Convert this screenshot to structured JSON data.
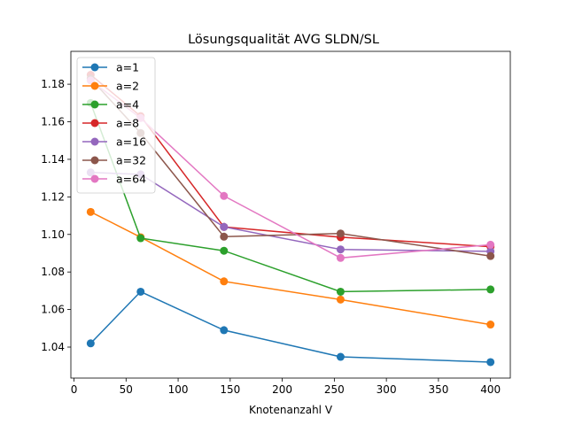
{
  "chart_data": {
    "type": "line",
    "title": "Lösungsqualität AVG SLDN/SL",
    "xlabel": "Knotenanzahl V",
    "ylabel": "",
    "x": [
      16,
      64,
      144,
      256,
      400
    ],
    "xlim": [
      -3,
      419
    ],
    "ylim": [
      1.0235,
      1.1975
    ],
    "xticks": [
      0,
      50,
      100,
      150,
      200,
      250,
      300,
      350,
      400
    ],
    "yticks": [
      1.04,
      1.06,
      1.08,
      1.1,
      1.12,
      1.14,
      1.16,
      1.18
    ],
    "ytick_labels": [
      "1.04",
      "1.06",
      "1.08",
      "1.10",
      "1.12",
      "1.14",
      "1.16",
      "1.18"
    ],
    "grid": false,
    "legend_position": "upper-left",
    "series": [
      {
        "name": "a=1",
        "color": "#1f77b4",
        "values": [
          1.042,
          1.0695,
          1.049,
          1.0348,
          1.032
        ]
      },
      {
        "name": "a=2",
        "color": "#ff7f0e",
        "values": [
          1.112,
          1.0985,
          1.075,
          1.0653,
          1.052
        ]
      },
      {
        "name": "a=4",
        "color": "#2ca02c",
        "values": [
          1.17,
          1.098,
          1.0913,
          1.0695,
          1.0707
        ]
      },
      {
        "name": "a=8",
        "color": "#d62728",
        "values": [
          1.185,
          1.163,
          1.104,
          1.0985,
          1.0935
        ]
      },
      {
        "name": "a=16",
        "color": "#9467bd",
        "values": [
          1.133,
          1.132,
          1.104,
          1.092,
          1.091
        ]
      },
      {
        "name": "a=32",
        "color": "#8c564b",
        "values": [
          1.183,
          1.154,
          1.0988,
          1.1005,
          1.0885
        ]
      },
      {
        "name": "a=64",
        "color": "#e377c2",
        "values": [
          1.182,
          1.162,
          1.1205,
          1.0875,
          1.0945
        ]
      }
    ]
  }
}
